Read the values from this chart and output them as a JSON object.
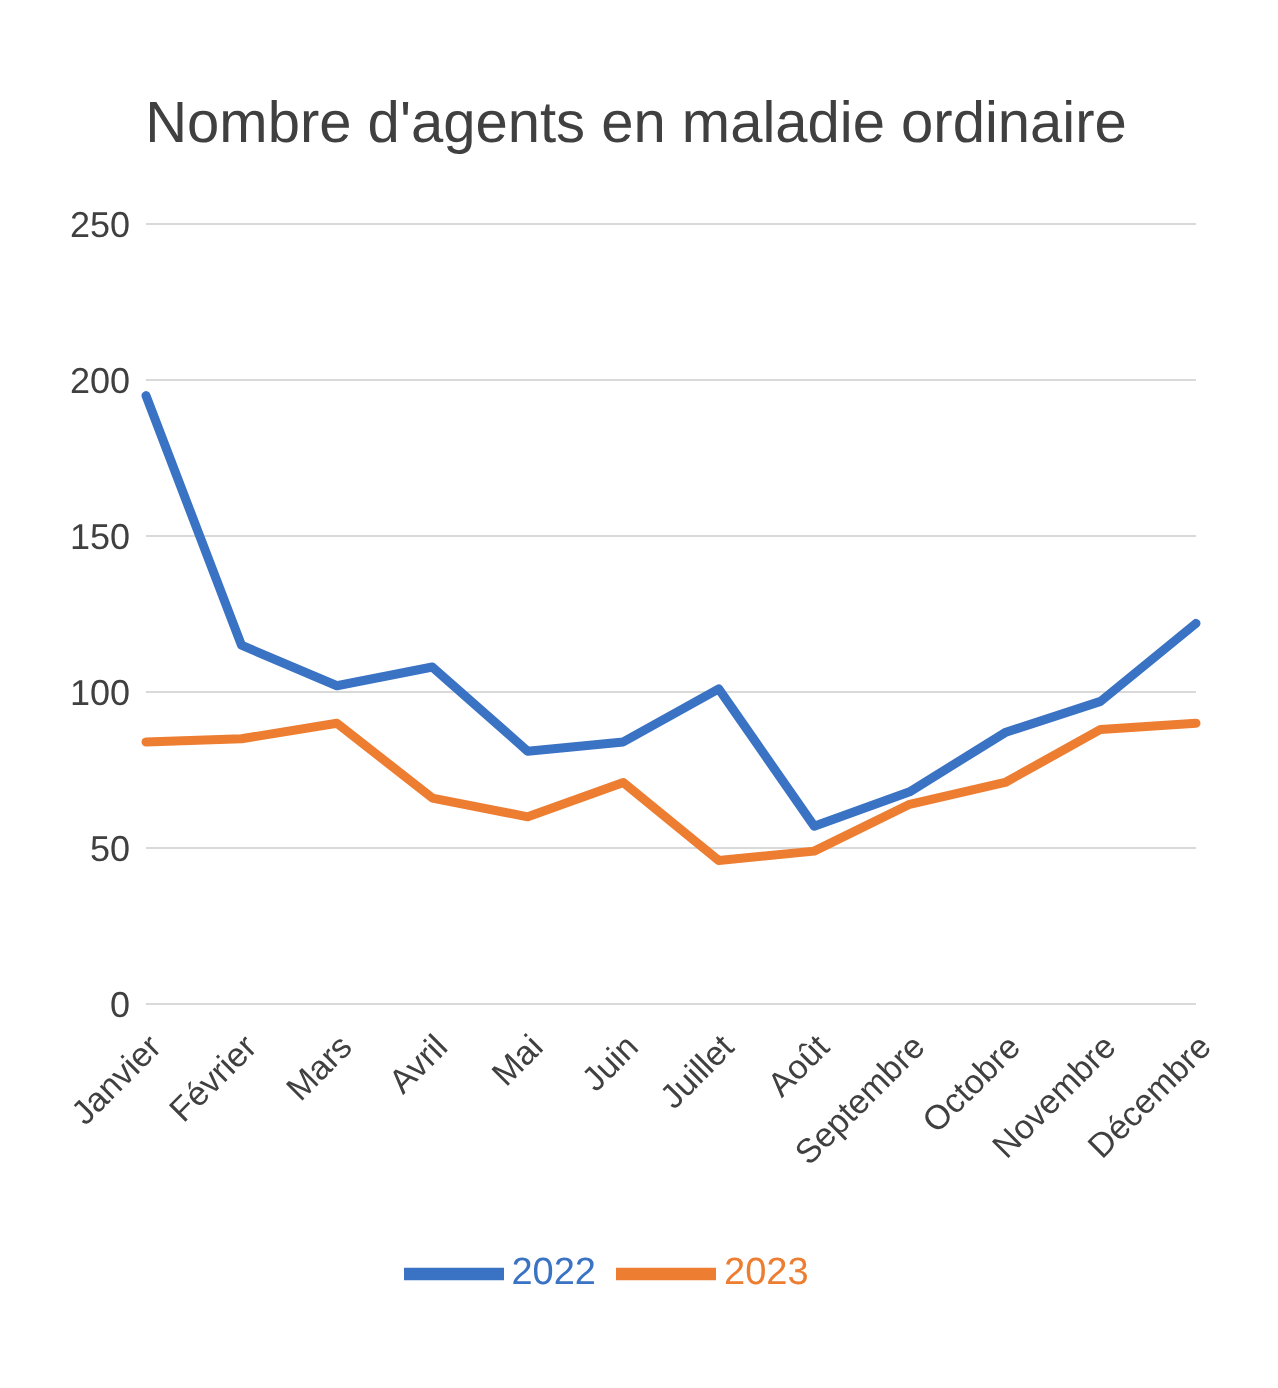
{
  "chart_data": {
    "type": "line",
    "title": "Nombre d'agents en maladie ordinaire",
    "categories": [
      "Janvier",
      "Février",
      "Mars",
      "Avril",
      "Mai",
      "Juin",
      "Juillet",
      "Août",
      "Septembre",
      "Octobre",
      "Novembre",
      "Décembre"
    ],
    "series": [
      {
        "name": "2022",
        "color": "#3a72c4",
        "values": [
          195,
          115,
          102,
          108,
          81,
          84,
          101,
          57,
          68,
          87,
          97,
          122
        ]
      },
      {
        "name": "2023",
        "color": "#ed7d31",
        "values": [
          84,
          85,
          90,
          66,
          60,
          71,
          46,
          49,
          64,
          71,
          88,
          90
        ]
      }
    ],
    "ylim": [
      0,
      250
    ],
    "yticks": [
      0,
      50,
      100,
      150,
      200,
      250
    ],
    "grid": "y",
    "legend": "bottom",
    "marker": "none",
    "line_style": "solid"
  }
}
